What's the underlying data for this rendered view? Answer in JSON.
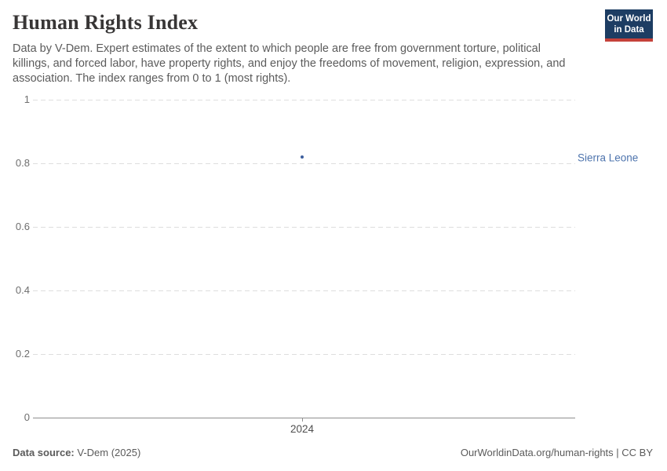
{
  "header": {
    "title": "Human Rights Index",
    "subtitle": "Data by V-Dem. Expert estimates of the extent to which people are free from government torture, political killings, and forced labor, have property rights, and enjoy the freedoms of movement, religion, expression, and association. The index ranges from 0 to 1 (most rights).",
    "logo": {
      "line1": "Our World",
      "line2": "in Data",
      "bg_color": "#1d3d63",
      "stripe_color": "#c5413a"
    }
  },
  "chart_data": {
    "type": "scatter",
    "title": "Human Rights Index",
    "x": [
      2024
    ],
    "series": [
      {
        "name": "Sierra Leone",
        "values": [
          0.82
        ],
        "color": "#3d5f9e",
        "label_color": "#4e74ad"
      }
    ],
    "xlabel": "",
    "ylabel": "",
    "ylim": [
      0,
      1
    ],
    "yticks": [
      0,
      0.2,
      0.4,
      0.6,
      0.8,
      1
    ],
    "xticks": [
      "2024"
    ],
    "grid": true,
    "legend_position": "right-inline-label"
  },
  "footer": {
    "source_label": "Data source:",
    "source_value": " V-Dem (2025)",
    "credit": "OurWorldinData.org/human-rights | CC BY"
  }
}
